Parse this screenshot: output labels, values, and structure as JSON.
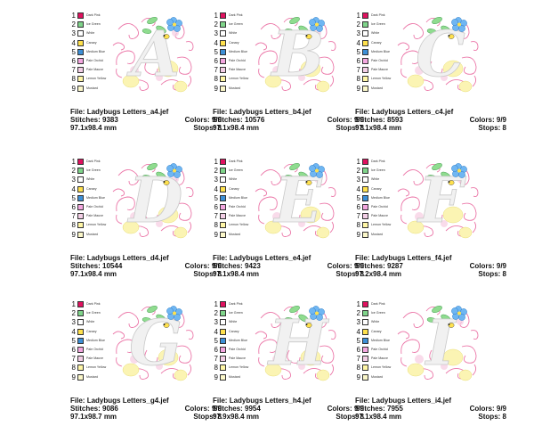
{
  "legend": [
    {
      "num": "1",
      "name": "Dark Pink",
      "color": "#e0115f"
    },
    {
      "num": "2",
      "name": "Ice Green",
      "color": "#7fd48a"
    },
    {
      "num": "3",
      "name": "White",
      "color": "#ffffff"
    },
    {
      "num": "4",
      "name": "Canary",
      "color": "#ffe14d"
    },
    {
      "num": "5",
      "name": "Medium Blue",
      "color": "#3d8fd6"
    },
    {
      "num": "6",
      "name": "Pale Orchid",
      "color": "#f4a7e0"
    },
    {
      "num": "7",
      "name": "Pale Mauve",
      "color": "#f3cfe6"
    },
    {
      "num": "8",
      "name": "Lemon Yellow",
      "color": "#fff6a6"
    },
    {
      "num": "9",
      "name": "Mustard",
      "color": "#fbf7c9"
    }
  ],
  "labels": {
    "file": "File:",
    "stitches": "Stitches:",
    "colors": "Colors:",
    "stops": "Stops:"
  },
  "designs": [
    {
      "letter": "A",
      "file": "Ladybugs Letters_a4.jef",
      "stitches": "9383",
      "size": "97.1x98.4 mm",
      "colors": "9/9",
      "stops": "8"
    },
    {
      "letter": "B",
      "file": "Ladybugs Letters_b4.jef",
      "stitches": "10576",
      "size": "97.1x98.4 mm",
      "colors": "9/9",
      "stops": "8"
    },
    {
      "letter": "C",
      "file": "Ladybugs Letters_c4.jef",
      "stitches": "8593",
      "size": "97.1x98.4 mm",
      "colors": "9/9",
      "stops": "8"
    },
    {
      "letter": "D",
      "file": "Ladybugs Letters_d4.jef",
      "stitches": "10544",
      "size": "97.1x98.4 mm",
      "colors": "9/9",
      "stops": "8"
    },
    {
      "letter": "E",
      "file": "Ladybugs Letters_e4.jef",
      "stitches": "9423",
      "size": "97.1x98.4 mm",
      "colors": "9/9",
      "stops": "8"
    },
    {
      "letter": "F",
      "file": "Ladybugs Letters_f4.jef",
      "stitches": "9287",
      "size": "97.2x98.4 mm",
      "colors": "9/9",
      "stops": "8"
    },
    {
      "letter": "G",
      "file": "Ladybugs Letters_g4.jef",
      "stitches": "9086",
      "size": "97.1x98.7 mm",
      "colors": "9/9",
      "stops": "8"
    },
    {
      "letter": "H",
      "file": "Ladybugs Letters_h4.jef",
      "stitches": "9954",
      "size": "97.9x98.4 mm",
      "colors": "9/9",
      "stops": "8"
    },
    {
      "letter": "I",
      "file": "Ladybugs Letters_i4.jef",
      "stitches": "7955",
      "size": "97.1x98.4 mm",
      "colors": "9/9",
      "stops": "8"
    }
  ]
}
